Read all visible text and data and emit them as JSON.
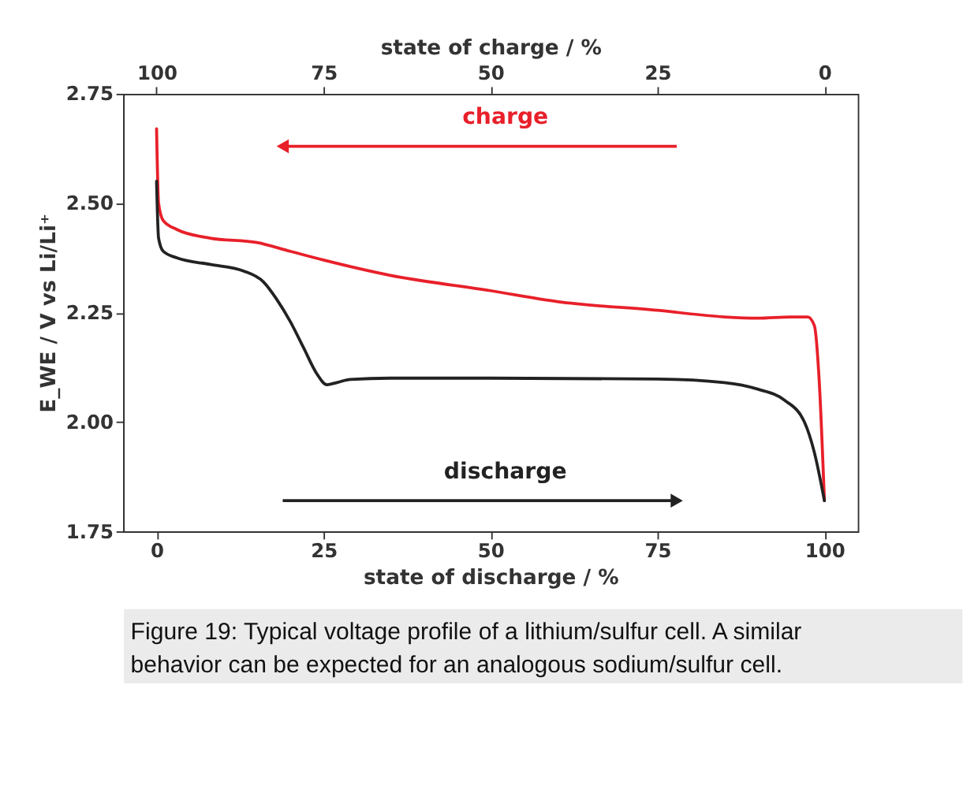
{
  "chart_data": {
    "type": "line",
    "xlabel": "state of discharge / %",
    "x2label": "state of charge / %",
    "ylabel": "E_WE / V vs Li/Li⁺",
    "xlim": [
      -5,
      105
    ],
    "xticks": [
      0,
      25,
      50,
      75,
      100
    ],
    "x2lim": [
      105,
      -5
    ],
    "x2ticks": [
      100,
      75,
      50,
      25,
      0
    ],
    "ylim": [
      1.75,
      2.75
    ],
    "yticks": [
      1.75,
      {
        "value": 2.0,
        "label": "2.00"
      },
      2.25,
      {
        "value": 2.5,
        "label": "2.50"
      },
      2.75
    ],
    "grid": false,
    "legend": false,
    "marker": "none",
    "line_style": "solid",
    "series": [
      {
        "name": "charge",
        "color": "#e8202a",
        "x": [
          0,
          0.3,
          1,
          3,
          8,
          15,
          20,
          25,
          35,
          50,
          60,
          75,
          85,
          90,
          95,
          97.5,
          98.5,
          99.2,
          100
        ],
        "values": [
          2.67,
          2.5,
          2.46,
          2.44,
          2.42,
          2.41,
          2.39,
          2.37,
          2.335,
          2.3,
          2.275,
          2.255,
          2.24,
          2.237,
          2.24,
          2.24,
          2.22,
          2.1,
          1.82
        ]
      },
      {
        "name": "discharge",
        "color": "#222222",
        "x": [
          0,
          0.3,
          1,
          3,
          8,
          13,
          16,
          18,
          20,
          22,
          24,
          25.5,
          27,
          29,
          35,
          50,
          75,
          85,
          90,
          94,
          97,
          98.5,
          100
        ],
        "values": [
          2.55,
          2.42,
          2.39,
          2.375,
          2.36,
          2.345,
          2.32,
          2.28,
          2.23,
          2.17,
          2.11,
          2.085,
          2.09,
          2.097,
          2.1,
          2.1,
          2.098,
          2.09,
          2.075,
          2.05,
          2.0,
          1.93,
          1.82
        ]
      }
    ],
    "annotations": [
      "Figure 19: Typical voltage profile of a lithium/sulfur cell. A similar behavior can be expected for an analogous sodium/sulfur cell."
    ]
  }
}
